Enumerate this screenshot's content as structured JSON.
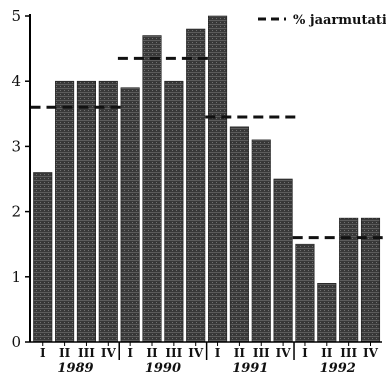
{
  "chart_data": {
    "type": "bar",
    "title": "",
    "xlabel": "",
    "ylabel": "",
    "ylim": [
      0,
      5
    ],
    "yticks": [
      "0",
      "1",
      "2",
      "3",
      "4",
      "5"
    ],
    "categories": [
      "I",
      "II",
      "III",
      "IV",
      "I",
      "II",
      "III",
      "IV",
      "I",
      "II",
      "III",
      "IV",
      "I",
      "II",
      "III",
      "IV"
    ],
    "values": [
      2.6,
      4.0,
      4.0,
      4.0,
      3.9,
      4.7,
      4.0,
      4.8,
      5.0,
      3.3,
      3.1,
      2.5,
      1.5,
      0.9,
      1.9,
      1.9
    ],
    "year_labels": [
      "1989",
      "1990",
      "1991",
      "1992"
    ],
    "annual": {
      "name": "% jaarmutatie",
      "values": [
        3.6,
        4.35,
        3.45,
        1.6
      ]
    },
    "legend_position": "top-right",
    "grid": false,
    "colors": {
      "bar": "#3a3a3a",
      "bar_stripe": "#6a6a6a",
      "axis": "#000000"
    }
  }
}
